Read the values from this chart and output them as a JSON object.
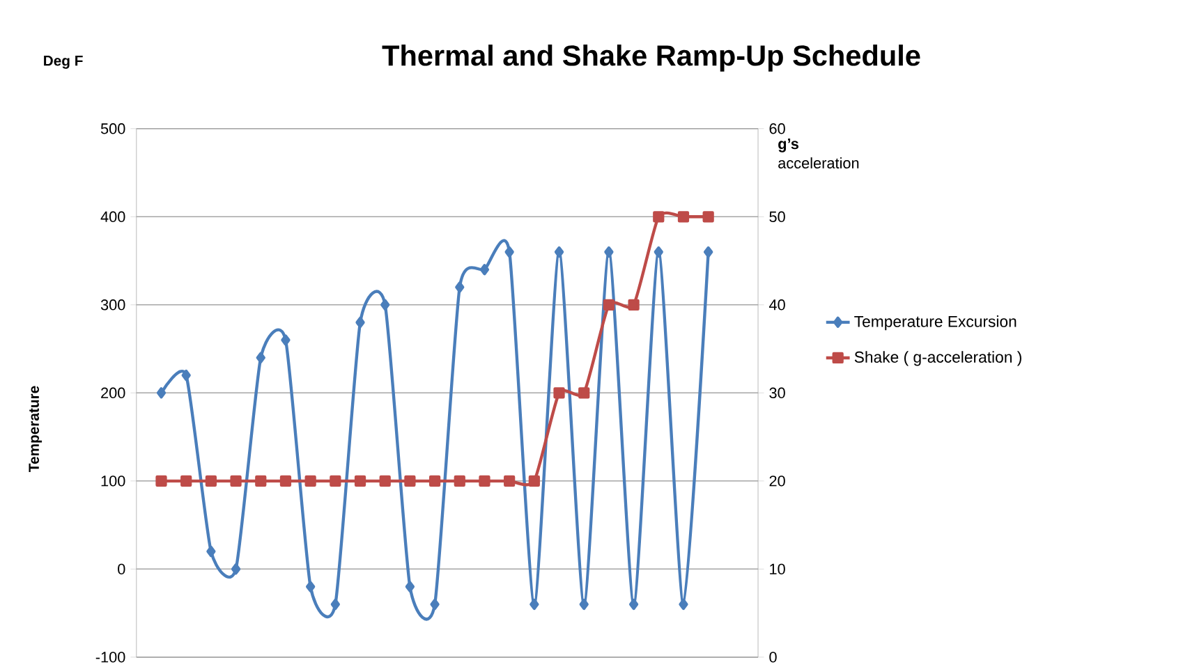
{
  "chart_data": {
    "type": "line",
    "title": "Thermal and Shake Ramp-Up Schedule",
    "ylabel": "Temperature",
    "y2label": "**g’s** acceleration",
    "annotations": [
      "Deg F"
    ],
    "categories": [
      null,
      null,
      null,
      null,
      null,
      null,
      null,
      null,
      null,
      null,
      null,
      null,
      null,
      null,
      null,
      null,
      null,
      null,
      null,
      null,
      null,
      null,
      null
    ],
    "series": [
      {
        "name": "Temperature Excursion",
        "color": "#4a7ebb",
        "marker": "diamond",
        "values": [
          200,
          220,
          20,
          0,
          240,
          260,
          -20,
          -40,
          280,
          300,
          -20,
          -40,
          320,
          340,
          360,
          -40,
          360,
          -40,
          360,
          -40,
          360,
          -40,
          360
        ]
      },
      {
        "name": "Shake  ( g-acceleration )",
        "color": "#be4b48",
        "marker": "square",
        "axis": "y2",
        "values": [
          20,
          20,
          20,
          20,
          20,
          20,
          20,
          20,
          20,
          20,
          20,
          20,
          20,
          20,
          20,
          20,
          30,
          30,
          40,
          40,
          50,
          50,
          50
        ]
      }
    ],
    "ylim": [
      -100,
      500
    ],
    "yticks": [
      -100,
      0,
      100,
      200,
      300,
      400,
      500
    ],
    "y2lim": [
      0,
      60
    ],
    "y2ticks": [
      0,
      10,
      20,
      30,
      40,
      50,
      60
    ],
    "grid": "y",
    "legend": "right"
  }
}
